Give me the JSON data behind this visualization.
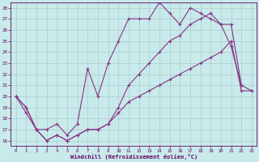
{
  "xlabel": "Windchill (Refroidissement éolien,°C)",
  "bg_color": "#c8eaea",
  "grid_color": "#aacccc",
  "line_color": "#883388",
  "xlim": [
    -0.5,
    23.5
  ],
  "ylim": [
    15.5,
    28.5
  ],
  "xticks": [
    0,
    1,
    2,
    3,
    4,
    5,
    6,
    7,
    8,
    9,
    10,
    11,
    12,
    13,
    14,
    15,
    16,
    17,
    18,
    19,
    20,
    21,
    22,
    23
  ],
  "yticks": [
    16,
    17,
    18,
    19,
    20,
    21,
    22,
    23,
    24,
    25,
    26,
    27,
    28
  ],
  "series1_x": [
    0,
    1,
    2,
    3,
    4,
    5,
    6,
    7,
    8,
    9,
    10,
    11,
    12,
    13,
    14,
    15,
    16,
    17,
    18,
    19,
    20,
    21,
    22,
    23
  ],
  "series1_y": [
    20.0,
    18.5,
    17.0,
    17.0,
    17.5,
    16.5,
    17.5,
    22.5,
    20.0,
    23.0,
    25.0,
    27.0,
    27.0,
    27.0,
    28.5,
    27.5,
    26.5,
    28.0,
    27.5,
    27.0,
    26.5,
    24.5,
    21.0,
    null
  ],
  "series2_x": [
    0,
    1,
    2,
    3,
    4,
    5,
    6,
    7,
    8,
    9,
    10,
    11,
    12,
    13,
    14,
    15,
    16,
    17,
    18,
    19,
    20,
    21,
    22,
    23
  ],
  "series2_y": [
    20.0,
    19.0,
    17.0,
    16.0,
    16.5,
    16.0,
    16.5,
    17.0,
    17.0,
    17.5,
    19.0,
    21.0,
    22.0,
    23.0,
    24.0,
    25.0,
    25.5,
    26.5,
    27.0,
    27.5,
    26.5,
    26.5,
    21.0,
    20.5
  ],
  "series3_x": [
    0,
    1,
    2,
    3,
    4,
    5,
    6,
    7,
    8,
    9,
    10,
    11,
    12,
    13,
    14,
    15,
    16,
    17,
    18,
    19,
    20,
    21,
    22,
    23
  ],
  "series3_y": [
    20.0,
    19.0,
    17.0,
    16.0,
    16.5,
    16.0,
    16.5,
    17.0,
    17.0,
    17.5,
    18.5,
    19.5,
    20.0,
    20.5,
    21.0,
    21.5,
    22.0,
    22.5,
    23.0,
    23.5,
    24.0,
    25.0,
    20.5,
    20.5
  ]
}
